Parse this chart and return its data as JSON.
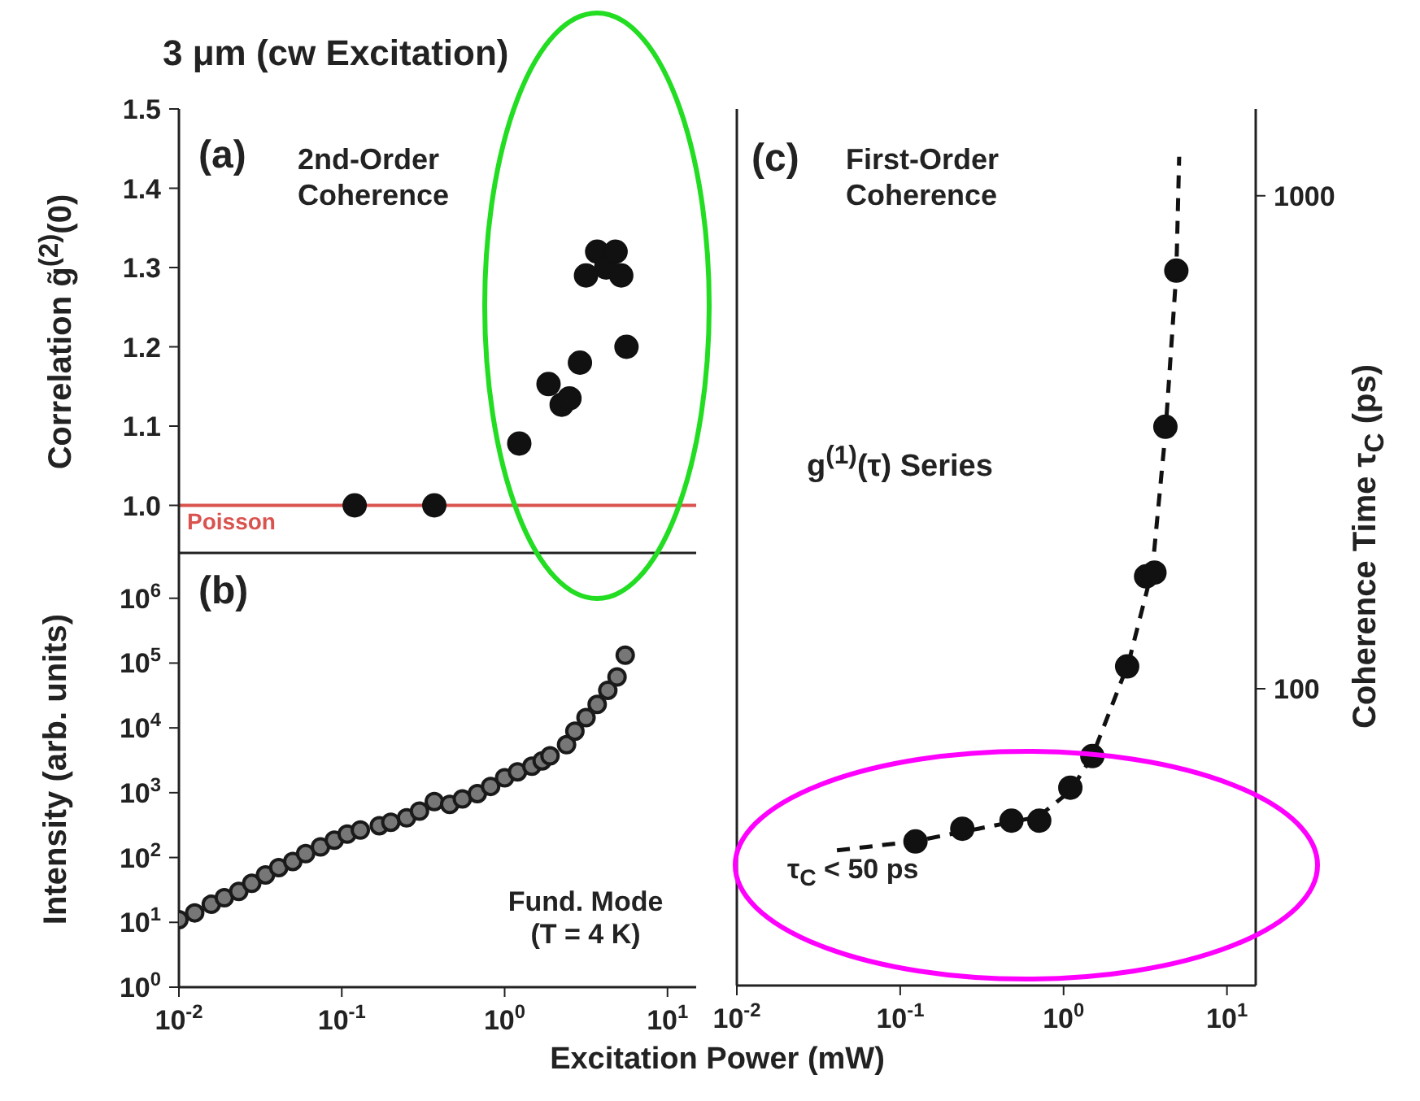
{
  "chart_data": [
    {
      "type": "scatter",
      "title": "3 μm (cw Excitation)",
      "ylabel": "Correlation g̃$^{(2)}$(0)",
      "log": "x",
      "xlim": [
        0.01,
        15
      ],
      "xticks": [
        {
          "value": 0.01,
          "label": null
        },
        {
          "value": 0.1,
          "label": null
        },
        {
          "value": 1,
          "label": null
        },
        {
          "value": 10,
          "label": null
        }
      ],
      "tick_labels": "y",
      "ylim": [
        0.94,
        1.5
      ],
      "yticks": [
        {
          "value": 1,
          "label": "1.0"
        },
        1.1,
        1.2,
        1.3,
        1.4,
        1.5
      ],
      "marker": "circle",
      "series": [
        {
          "color": "#111111",
          "x": [
            0.12,
            0.37,
            1.23,
            1.86,
            2.24,
            2.5,
            2.9,
            3.16,
            3.7,
            4.2,
            4.8,
            5.2,
            5.6
          ],
          "values": [
            1.0,
            1.0,
            1.078,
            1.153,
            1.127,
            1.135,
            1.18,
            1.29,
            1.32,
            1.3,
            1.32,
            1.29,
            1.2
          ]
        }
      ],
      "ref_lines": [
        {
          "axis": "y",
          "value": 1,
          "label": "Poisson",
          "color": "#d9534f",
          "line_style": "solid"
        }
      ],
      "annotations": [
        "(a)",
        "2nd-Order Coherence"
      ]
    },
    {
      "type": "scatter",
      "ylabel": "Intensity (arb. units)",
      "xlabel": "Excitation Power (mW)",
      "log": "xy",
      "xlim": [
        0.01,
        15
      ],
      "xticks": [
        {
          "value": 0.01,
          "label": "10$^{-2}$"
        },
        {
          "value": 0.1,
          "label": "10$^{-1}$"
        },
        {
          "value": 1,
          "label": "10$^{0}$"
        },
        {
          "value": 10,
          "label": "10$^{1}$"
        }
      ],
      "ylim": [
        1,
        5000000
      ],
      "yticks": [
        {
          "value": 1,
          "label": "10$^{0}$"
        },
        {
          "value": 10,
          "label": "10$^{1}$"
        },
        {
          "value": 100,
          "label": "10$^{2}$"
        },
        {
          "value": 1000,
          "label": "10$^{3}$"
        },
        {
          "value": 10000,
          "label": "10$^{4}$"
        },
        {
          "value": 100000,
          "label": "10$^{5}$"
        },
        {
          "value": 1000000,
          "label": "10$^{6}$"
        }
      ],
      "marker": "circle",
      "series": [
        {
          "color": "#1a1a1a",
          "x": [
            0.01,
            0.0125,
            0.0158,
            0.019,
            0.0233,
            0.028,
            0.034,
            0.041,
            0.05,
            0.06,
            0.074,
            0.09,
            0.108,
            0.13,
            0.17,
            0.2,
            0.25,
            0.3,
            0.37,
            0.46,
            0.55,
            0.68,
            0.82,
            1.0,
            1.2,
            1.47,
            1.7,
            1.9,
            2.4,
            2.7,
            3.16,
            3.7,
            4.3,
            4.9,
            5.5
          ],
          "values": [
            11,
            14,
            19,
            24,
            30,
            40,
            54,
            70,
            87,
            115,
            146,
            185,
            230,
            265,
            310,
            350,
            410,
            520,
            730,
            660,
            800,
            970,
            1250,
            1700,
            2100,
            2560,
            3100,
            3700,
            5500,
            8900,
            14400,
            23000,
            38000,
            61000,
            132000
          ]
        }
      ],
      "annotations": [
        "(b)",
        "Fund. Mode (T = 4 K)"
      ]
    },
    {
      "type": "scatter",
      "ylabel": "Coherence Time τ$_{C}$ (ps)",
      "log": "xy",
      "xlim": [
        0.01,
        15
      ],
      "xticks": [
        {
          "value": 0.01,
          "label": "10$^{-2}$"
        },
        {
          "value": 0.1,
          "label": "10$^{-1}$"
        },
        {
          "value": 1,
          "label": "10$^{0}$"
        },
        {
          "value": 10,
          "label": "10$^{1}$"
        }
      ],
      "ylim": [
        25,
        1500
      ],
      "yticks": [
        100,
        1000
      ],
      "marker": "circle",
      "series": [
        {
          "color": "#111111",
          "x": [
            0.124,
            0.24,
            0.48,
            0.71,
            1.1,
            1.5,
            2.45,
            3.2,
            3.6,
            4.2,
            4.9
          ],
          "values": [
            49,
            52,
            54,
            54,
            63,
            73,
            111,
            169,
            172,
            340,
            705
          ]
        },
        {
          "type": "line",
          "color": "#111111",
          "line_style": "dashed",
          "marker": "none",
          "x": [
            0.041,
            0.12,
            0.3,
            0.7,
            1.1,
            1.5,
            2.5,
            3.5,
            4.2,
            4.9,
            5.1
          ],
          "values": [
            47,
            49,
            52,
            55,
            62,
            73,
            113,
            175,
            330,
            700,
            1200
          ]
        }
      ],
      "annotations": [
        "(c)",
        "First-Order Coherence",
        "g$^{(1)}$(τ) Series",
        "τ$_{C}$ < 50 ps"
      ]
    }
  ]
}
